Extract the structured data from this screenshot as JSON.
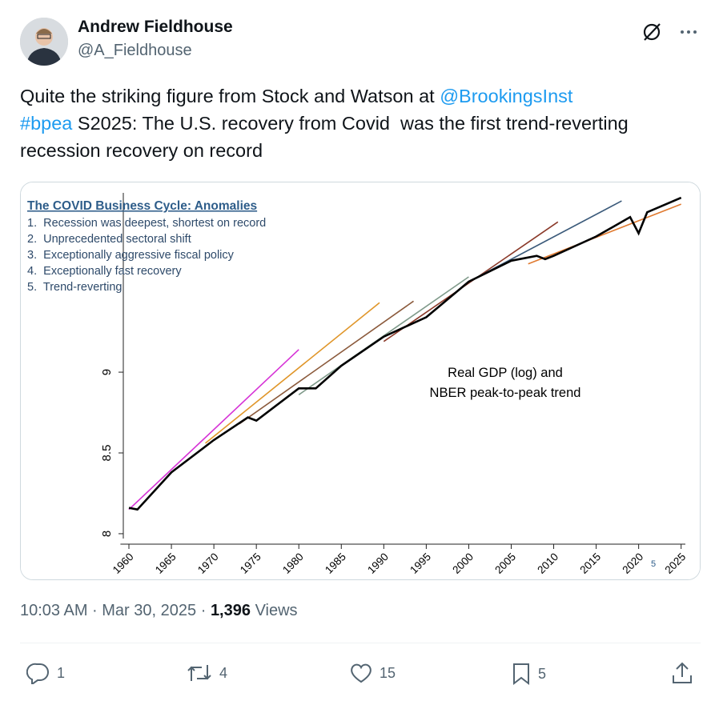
{
  "author": {
    "name": "Andrew Fieldhouse",
    "handle": "@A_Fieldhouse"
  },
  "tweet": {
    "lines": [
      [
        "Quite the striking figure from Stock and Watson at ",
        {
          "link": "@BrookingsInst"
        }
      ],
      [
        {
          "link": "#bpea"
        },
        " S2025: The U.S. recovery from Covid  was the first trend-reverting"
      ],
      [
        "recession recovery on record"
      ]
    ],
    "timestamp": "10:03 AM · Mar 30, 2025",
    "separator": "·",
    "views": "1,396",
    "views_label": "Views"
  },
  "actions": {
    "replies": 1,
    "reposts": 4,
    "likes": 15,
    "bookmarks": 5
  },
  "chart_data": {
    "type": "line",
    "title": "The COVID Business Cycle: Anomalies",
    "list": [
      "1.  Recession was deepest, shortest on record",
      "2.  Unprecedented sectoral shift",
      "3.  Exceptionally aggressive fiscal policy",
      "4.  Exceptionally fast recovery",
      "5.  Trend-reverting"
    ],
    "annotation": [
      "Real GDP (log) and",
      "NBER peak-to-peak trend"
    ],
    "footnote": "5",
    "xlim": [
      1959,
      2025.5
    ],
    "ylim": [
      7.97,
      10.11
    ],
    "xticks": [
      1960,
      1965,
      1970,
      1975,
      1980,
      1985,
      1990,
      1995,
      2000,
      2005,
      2010,
      2015,
      2020,
      2025
    ],
    "yticks": [
      8,
      8.5,
      9
    ],
    "series": [
      {
        "color": "#d633d6",
        "x": [
          1960,
          1980
        ],
        "values": [
          8.15,
          9.14
        ]
      },
      {
        "color": "#e0962a",
        "x": [
          1969,
          1989.5
        ],
        "values": [
          8.56,
          9.43
        ]
      },
      {
        "color": "#8b5a3c",
        "x": [
          1973,
          1993.5
        ],
        "values": [
          8.68,
          9.44
        ]
      },
      {
        "color": "#7f9a8a",
        "x": [
          1980,
          2000
        ],
        "values": [
          8.86,
          9.59
        ]
      },
      {
        "color": "#8b3a2a",
        "x": [
          1990,
          2010.5
        ],
        "values": [
          9.19,
          9.93
        ]
      },
      {
        "color": "#3b5a7a",
        "x": [
          2000,
          2018
        ],
        "values": [
          9.56,
          10.06
        ]
      },
      {
        "color": "#e07a30",
        "x": [
          2007,
          2025
        ],
        "values": [
          9.67,
          10.04
        ]
      },
      {
        "color": "#000000",
        "x": [
          1960,
          1961,
          1965,
          1970,
          1974,
          1975,
          1980,
          1982,
          1985,
          1990,
          1995,
          2000,
          2005,
          2008,
          2009,
          2010,
          2015,
          2019,
          2020,
          2021,
          2025
        ],
        "values": [
          8.16,
          8.15,
          8.38,
          8.58,
          8.72,
          8.7,
          8.9,
          8.9,
          9.04,
          9.22,
          9.34,
          9.56,
          9.69,
          9.72,
          9.7,
          9.72,
          9.84,
          9.96,
          9.86,
          9.99,
          10.08
        ]
      }
    ]
  }
}
